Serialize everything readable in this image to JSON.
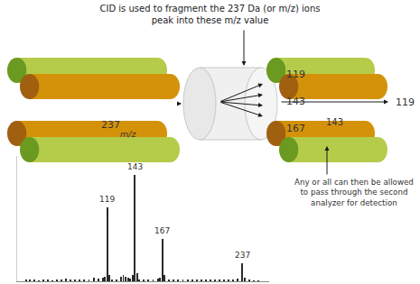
{
  "chart_data": {
    "type": "bar",
    "title": "CID is used to fragment the 237 Da (or m/z) ions",
    "subtitle": "peak into these m/z value",
    "x": [
      48,
      51,
      55,
      59,
      63,
      67,
      71,
      75,
      79,
      83,
      87,
      91,
      95,
      99,
      103,
      107,
      111,
      115,
      117,
      119,
      121,
      123,
      127,
      131,
      133,
      135,
      137,
      139,
      141,
      143,
      145,
      147,
      151,
      155,
      159,
      163,
      165,
      167,
      169,
      173,
      177,
      181,
      185,
      189,
      193,
      197,
      201,
      205,
      209,
      213,
      217,
      221,
      225,
      229,
      233,
      237,
      239,
      243,
      247,
      251
    ],
    "values": [
      0.018,
      0.012,
      0.015,
      0.01,
      0.012,
      0.018,
      0.01,
      0.012,
      0.015,
      0.025,
      0.018,
      0.012,
      0.02,
      0.015,
      0.018,
      0.035,
      0.028,
      0.03,
      0.04,
      0.7,
      0.055,
      0.02,
      0.015,
      0.045,
      0.055,
      0.04,
      0.03,
      0.025,
      0.06,
      1.0,
      0.075,
      0.02,
      0.015,
      0.012,
      0.018,
      0.022,
      0.03,
      0.4,
      0.06,
      0.018,
      0.015,
      0.012,
      0.018,
      0.015,
      0.012,
      0.018,
      0.015,
      0.018,
      0.02,
      0.015,
      0.018,
      0.015,
      0.012,
      0.018,
      0.022,
      0.17,
      0.03,
      0.012,
      0.01,
      0.008
    ],
    "color": "#2a2a2a",
    "xlim": [
      40,
      260
    ],
    "ylim": [
      0,
      1.18
    ],
    "xticks": [],
    "yticks": [],
    "tick_labels": false,
    "grid": false,
    "peak_labels": [
      {
        "x": 119,
        "text": "119"
      },
      {
        "x": 143,
        "text": "143"
      },
      {
        "x": 167,
        "text": "167"
      },
      {
        "x": 237,
        "text": "237"
      }
    ],
    "annotations": [
      "237",
      "m/z",
      "119",
      "143",
      "167",
      "143",
      "119",
      "Any or all can then be allowed\nto pass through the second\nanalyzer for detection"
    ]
  }
}
